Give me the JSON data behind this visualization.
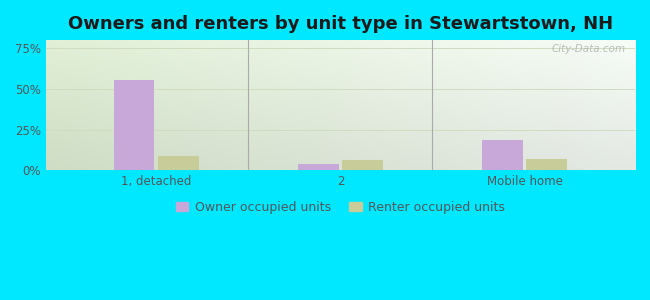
{
  "title": "Owners and renters by unit type in Stewartstown, NH",
  "categories": [
    "1, detached",
    "2",
    "Mobile home"
  ],
  "owner_values": [
    55.5,
    4.0,
    18.5
  ],
  "renter_values": [
    9.0,
    6.0,
    7.0
  ],
  "owner_color": "#c8a8d8",
  "renter_color": "#c8cc98",
  "background_color": "#00e8ff",
  "yticks": [
    0,
    25,
    50,
    75
  ],
  "ylim": [
    0,
    80
  ],
  "bar_width": 0.22,
  "title_fontsize": 13,
  "tick_fontsize": 8.5,
  "legend_fontsize": 9,
  "watermark": "City-Data.com",
  "grid_color": "#d0dcc0"
}
